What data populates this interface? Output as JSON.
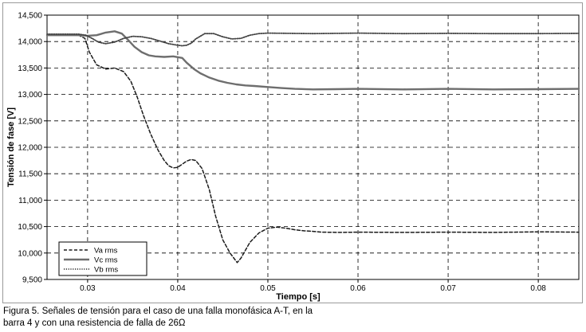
{
  "chart_data": {
    "type": "line",
    "title": "",
    "xlabel": "Tiempo [s]",
    "ylabel": "Tensión de fase [V]",
    "xlim": [
      0.0255,
      0.0845
    ],
    "ylim": [
      9500,
      14500
    ],
    "x_ticks": [
      0.03,
      0.04,
      0.05,
      0.06,
      0.07,
      0.08
    ],
    "x_tick_labels": [
      "0.03",
      "0.04",
      "0.05",
      "0.06",
      "0.07",
      "0.08"
    ],
    "y_ticks": [
      9500,
      10000,
      10500,
      11000,
      11500,
      12000,
      12500,
      13000,
      13500,
      14000,
      14500
    ],
    "y_tick_labels": [
      "9,500",
      "10,000",
      "10,500",
      "11,000",
      "11,500",
      "12,000",
      "12,500",
      "13,000",
      "13,500",
      "14,000",
      "14,500"
    ],
    "grid": true,
    "legend_position": "bottom-left",
    "series": [
      {
        "name": "Va rms",
        "style": "dashed",
        "color": "#1a1a1a",
        "x": [
          0.0255,
          0.029,
          0.0297,
          0.0302,
          0.031,
          0.032,
          0.033,
          0.034,
          0.0348,
          0.0355,
          0.0362,
          0.037,
          0.0378,
          0.0385,
          0.039,
          0.0395,
          0.04,
          0.0405,
          0.041,
          0.0415,
          0.042,
          0.0427,
          0.0435,
          0.0442,
          0.045,
          0.0458,
          0.0466,
          0.047,
          0.0475,
          0.048,
          0.049,
          0.05,
          0.051,
          0.052,
          0.053,
          0.054,
          0.055,
          0.056,
          0.058,
          0.06,
          0.065,
          0.07,
          0.075,
          0.08,
          0.0845
        ],
        "values": [
          14120,
          14120,
          14060,
          13800,
          13560,
          13480,
          13500,
          13430,
          13250,
          12950,
          12600,
          12250,
          11950,
          11750,
          11650,
          11610,
          11620,
          11680,
          11740,
          11770,
          11750,
          11600,
          11200,
          10700,
          10250,
          10000,
          9820,
          9900,
          10050,
          10200,
          10380,
          10470,
          10490,
          10470,
          10440,
          10420,
          10410,
          10395,
          10390,
          10395,
          10390,
          10395,
          10390,
          10400,
          10395
        ]
      },
      {
        "name": "Vc rms",
        "style": "solid",
        "color": "#6e6e6e",
        "x": [
          0.0255,
          0.029,
          0.03,
          0.031,
          0.032,
          0.033,
          0.0338,
          0.0345,
          0.0352,
          0.036,
          0.0368,
          0.0375,
          0.0385,
          0.0395,
          0.0405,
          0.041,
          0.0418,
          0.0425,
          0.0435,
          0.0445,
          0.0455,
          0.0465,
          0.0475,
          0.0485,
          0.05,
          0.0515,
          0.053,
          0.055,
          0.0575,
          0.06,
          0.065,
          0.07,
          0.075,
          0.08,
          0.0845
        ],
        "values": [
          14120,
          14120,
          14110,
          14120,
          14170,
          14195,
          14150,
          14030,
          13900,
          13800,
          13740,
          13720,
          13710,
          13720,
          13690,
          13600,
          13480,
          13400,
          13320,
          13260,
          13220,
          13190,
          13170,
          13160,
          13140,
          13120,
          13105,
          13095,
          13100,
          13105,
          13095,
          13105,
          13095,
          13100,
          13105
        ]
      },
      {
        "name": "Vb rms",
        "style": "dotted",
        "color": "#444444",
        "x": [
          0.0255,
          0.029,
          0.0298,
          0.0305,
          0.0312,
          0.032,
          0.033,
          0.034,
          0.035,
          0.036,
          0.037,
          0.038,
          0.039,
          0.04,
          0.0405,
          0.041,
          0.0415,
          0.042,
          0.043,
          0.044,
          0.045,
          0.046,
          0.047,
          0.048,
          0.049,
          0.05,
          0.055,
          0.06,
          0.065,
          0.07,
          0.075,
          0.08,
          0.0845
        ],
        "values": [
          14140,
          14140,
          14120,
          14060,
          13990,
          13960,
          13990,
          14060,
          14100,
          14090,
          14060,
          14010,
          13960,
          13930,
          13920,
          13930,
          13970,
          14050,
          14150,
          14150,
          14090,
          14050,
          14060,
          14120,
          14150,
          14160,
          14150,
          14160,
          14150,
          14155,
          14150,
          14150,
          14155
        ]
      }
    ]
  },
  "caption": {
    "line1": "Figura 5. Señales de tensión para el caso de una falla monofásica A-T, en la",
    "line2": "barra 4 y con una resistencia de falla de 26Ω"
  }
}
